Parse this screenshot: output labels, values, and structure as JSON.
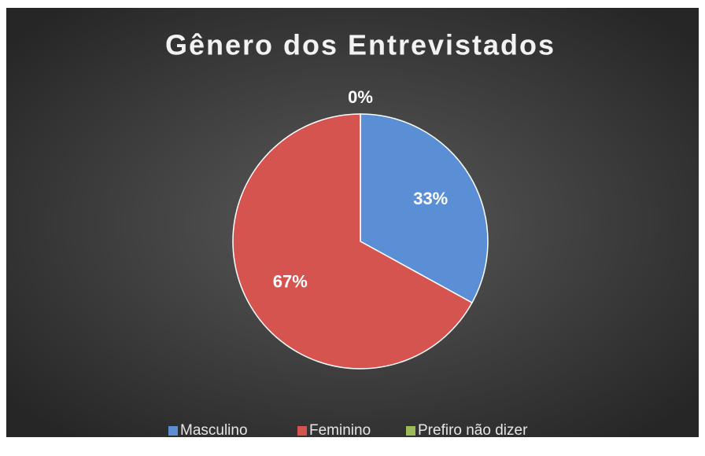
{
  "chart_data": {
    "type": "pie",
    "title": "Gênero dos Entrevistados",
    "categories": [
      "Masculino",
      "Feminino",
      "Prefiro não dizer"
    ],
    "values": [
      33,
      67,
      0
    ],
    "value_labels": [
      "33%",
      "67%",
      "0%"
    ],
    "colors": [
      "#5a8fd6",
      "#d65450",
      "#9bbb59"
    ],
    "legend": "bottom"
  }
}
